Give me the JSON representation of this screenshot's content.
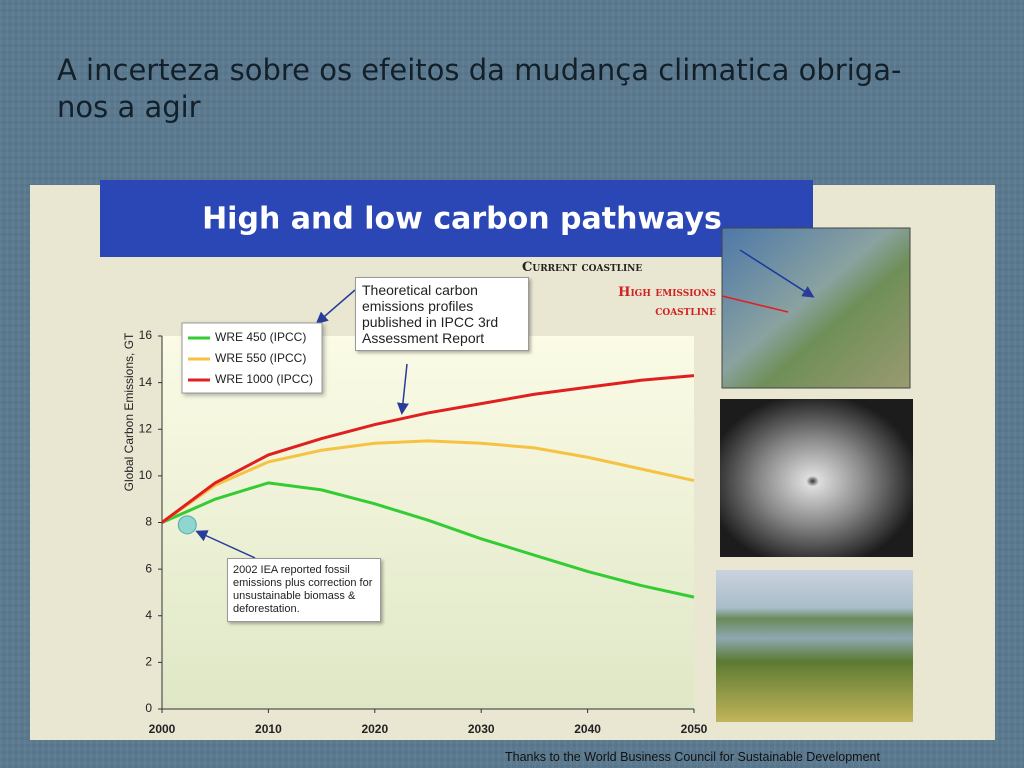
{
  "slide": {
    "title": "A incerteza sobre os efeitos da mudança climatica obriga-nos a agir",
    "map_labels": [
      "Current coastline",
      "High emissions coastline"
    ],
    "credit": "Thanks to the World Business Council for Sustainable Development"
  },
  "chart_data": {
    "type": "line",
    "title": "High and low carbon pathways",
    "y_label": "Global Carbon Emissions, GT",
    "x": [
      2000,
      2005,
      2010,
      2015,
      2020,
      2025,
      2030,
      2035,
      2040,
      2045,
      2050
    ],
    "series": [
      {
        "name": "WRE 450 (IPCC)",
        "color": "#33cc33",
        "values": [
          8,
          9.0,
          9.7,
          9.4,
          8.8,
          8.1,
          7.3,
          6.6,
          5.9,
          5.3,
          4.8
        ]
      },
      {
        "name": "WRE 550 (IPCC)",
        "color": "#f5c242",
        "values": [
          8,
          9.6,
          10.6,
          11.1,
          11.4,
          11.5,
          11.4,
          11.2,
          10.8,
          10.3,
          9.8
        ]
      },
      {
        "name": "WRE 1000 (IPCC)",
        "color": "#e02020",
        "values": [
          8,
          9.7,
          10.9,
          11.6,
          12.2,
          12.7,
          13.1,
          13.5,
          13.8,
          14.1,
          14.3
        ]
      }
    ],
    "marker": {
      "x": [
        2002
      ],
      "y": [
        7.9
      ],
      "color": "#8fd6d0"
    },
    "annotations": [
      "Theoretical carbon emissions profiles published in IPCC 3rd Assessment Report",
      "2002 IEA reported fossil emissions plus correction for unsustainable biomass & deforestation."
    ],
    "xlim": [
      2000,
      2050
    ],
    "xticks": [
      2000,
      2010,
      2020,
      2030,
      2040,
      2050
    ],
    "ylim": [
      0,
      16
    ],
    "yticks": [
      0,
      2,
      4,
      6,
      8,
      10,
      12,
      14,
      16
    ]
  }
}
